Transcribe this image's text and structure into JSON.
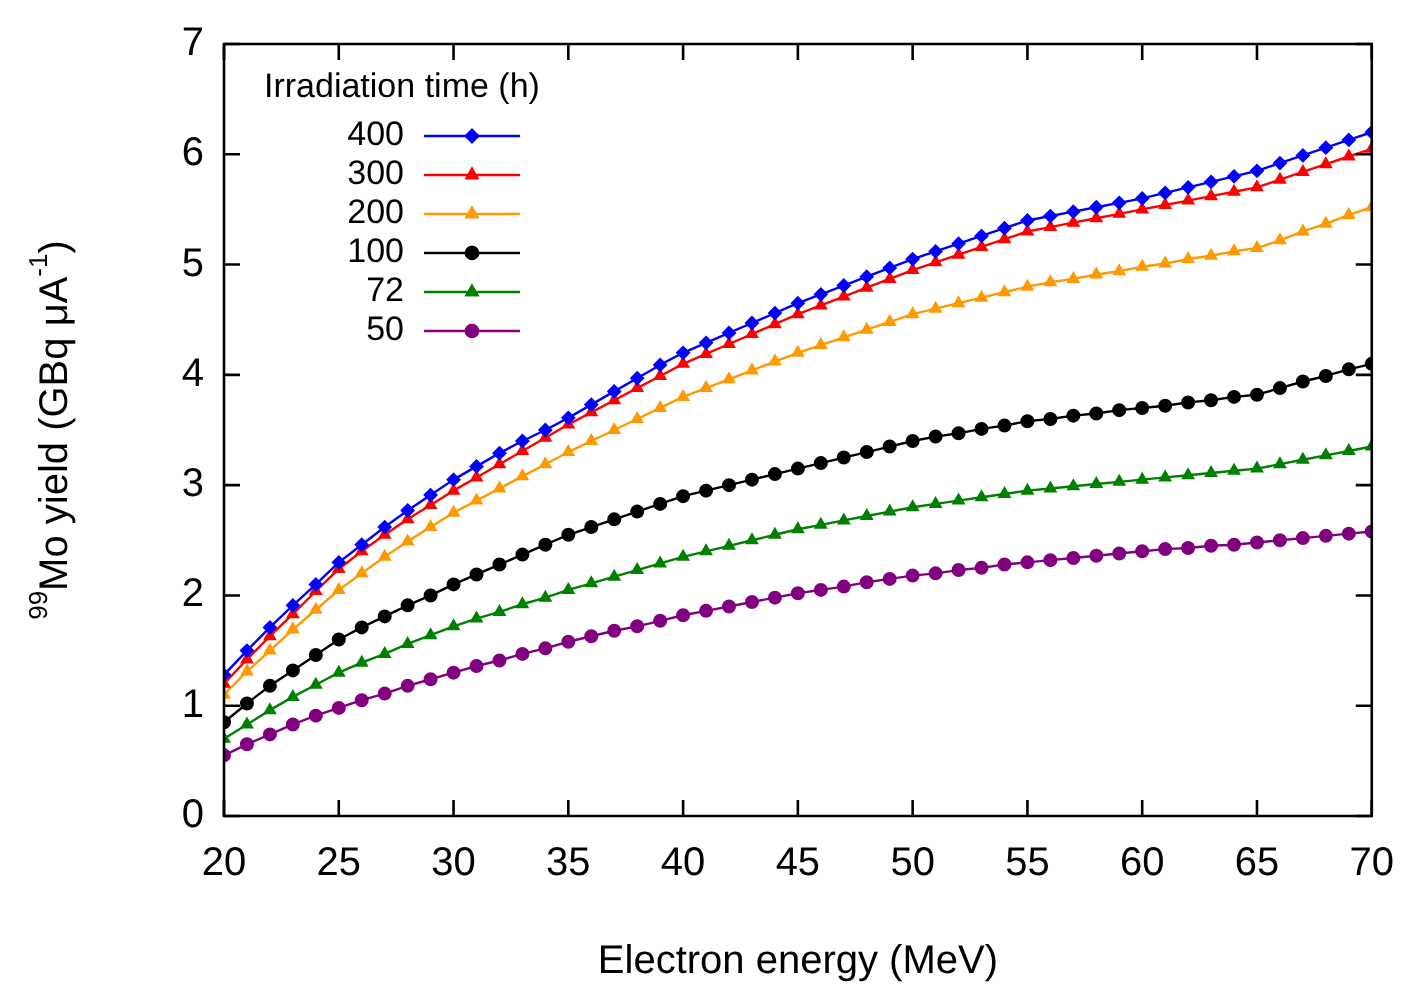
{
  "chart_data": {
    "type": "line",
    "xlabel": "Electron energy (MeV)",
    "ylabel": "$^{99}$Mo yield (GBq μA$^{-1}$)",
    "legend_title": "Irradiation time (h)",
    "legend": "top left",
    "grid": false,
    "x": [
      20,
      21,
      22,
      23,
      24,
      25,
      26,
      27,
      28,
      29,
      30,
      31,
      32,
      33,
      34,
      35,
      36,
      37,
      38,
      39,
      40,
      41,
      42,
      43,
      44,
      45,
      46,
      47,
      48,
      49,
      50,
      51,
      52,
      53,
      54,
      55,
      56,
      57,
      58,
      59,
      60,
      61,
      62,
      63,
      64,
      65,
      66,
      67,
      68,
      69,
      70
    ],
    "xlim": [
      20,
      70
    ],
    "xticks": [
      20,
      25,
      30,
      35,
      40,
      45,
      50,
      55,
      60,
      65,
      70
    ],
    "ylim": [
      0,
      7
    ],
    "yticks": [
      0,
      1,
      2,
      3,
      4,
      5,
      6,
      7
    ],
    "series": [
      {
        "name": "400",
        "color": "#0000ff",
        "marker": "diamond",
        "values": [
          1.28,
          1.5,
          1.71,
          1.91,
          2.1,
          2.3,
          2.46,
          2.62,
          2.77,
          2.91,
          3.05,
          3.17,
          3.29,
          3.4,
          3.5,
          3.61,
          3.73,
          3.85,
          3.97,
          4.09,
          4.2,
          4.29,
          4.38,
          4.47,
          4.56,
          4.65,
          4.73,
          4.81,
          4.89,
          4.97,
          5.05,
          5.12,
          5.19,
          5.26,
          5.33,
          5.4,
          5.44,
          5.48,
          5.52,
          5.56,
          5.6,
          5.65,
          5.7,
          5.75,
          5.8,
          5.85,
          5.92,
          5.99,
          6.06,
          6.13,
          6.2
        ]
      },
      {
        "name": "300",
        "color": "#ff0000",
        "marker": "triangle",
        "values": [
          1.2,
          1.42,
          1.63,
          1.83,
          2.04,
          2.24,
          2.4,
          2.55,
          2.69,
          2.82,
          2.95,
          3.07,
          3.19,
          3.31,
          3.43,
          3.55,
          3.66,
          3.77,
          3.88,
          3.99,
          4.1,
          4.19,
          4.28,
          4.37,
          4.46,
          4.55,
          4.63,
          4.71,
          4.79,
          4.87,
          4.95,
          5.02,
          5.09,
          5.16,
          5.23,
          5.3,
          5.34,
          5.38,
          5.42,
          5.46,
          5.5,
          5.54,
          5.58,
          5.62,
          5.66,
          5.7,
          5.77,
          5.84,
          5.91,
          5.98,
          6.05
        ]
      },
      {
        "name": "200",
        "color": "#ff9900",
        "marker": "triangle",
        "values": [
          1.1,
          1.31,
          1.5,
          1.69,
          1.87,
          2.05,
          2.2,
          2.35,
          2.49,
          2.62,
          2.75,
          2.86,
          2.97,
          3.08,
          3.19,
          3.3,
          3.4,
          3.5,
          3.6,
          3.7,
          3.8,
          3.88,
          3.96,
          4.04,
          4.12,
          4.2,
          4.27,
          4.34,
          4.41,
          4.48,
          4.55,
          4.6,
          4.65,
          4.7,
          4.75,
          4.8,
          4.84,
          4.87,
          4.91,
          4.94,
          4.98,
          5.01,
          5.05,
          5.08,
          5.12,
          5.15,
          5.22,
          5.3,
          5.37,
          5.45,
          5.52
        ]
      },
      {
        "name": "100",
        "color": "#000000",
        "marker": "circle",
        "values": [
          0.85,
          1.02,
          1.18,
          1.32,
          1.46,
          1.6,
          1.71,
          1.81,
          1.91,
          2.0,
          2.1,
          2.19,
          2.28,
          2.37,
          2.46,
          2.55,
          2.62,
          2.69,
          2.76,
          2.83,
          2.9,
          2.95,
          3.0,
          3.05,
          3.1,
          3.15,
          3.2,
          3.25,
          3.3,
          3.35,
          3.4,
          3.44,
          3.47,
          3.51,
          3.54,
          3.58,
          3.6,
          3.63,
          3.65,
          3.68,
          3.7,
          3.72,
          3.75,
          3.77,
          3.8,
          3.82,
          3.88,
          3.94,
          3.99,
          4.05,
          4.1
        ]
      },
      {
        "name": "72",
        "color": "#008000",
        "marker": "triangle",
        "values": [
          0.7,
          0.83,
          0.96,
          1.08,
          1.19,
          1.3,
          1.39,
          1.47,
          1.56,
          1.64,
          1.72,
          1.79,
          1.85,
          1.92,
          1.98,
          2.05,
          2.11,
          2.17,
          2.23,
          2.29,
          2.35,
          2.4,
          2.45,
          2.5,
          2.55,
          2.6,
          2.64,
          2.68,
          2.72,
          2.76,
          2.8,
          2.83,
          2.86,
          2.89,
          2.92,
          2.95,
          2.97,
          2.99,
          3.01,
          3.03,
          3.05,
          3.07,
          3.09,
          3.11,
          3.13,
          3.15,
          3.19,
          3.23,
          3.27,
          3.31,
          3.35
        ]
      },
      {
        "name": "50",
        "color": "#800080",
        "marker": "circle",
        "values": [
          0.55,
          0.65,
          0.74,
          0.83,
          0.91,
          0.98,
          1.05,
          1.11,
          1.18,
          1.24,
          1.3,
          1.36,
          1.41,
          1.47,
          1.52,
          1.58,
          1.63,
          1.68,
          1.72,
          1.77,
          1.82,
          1.86,
          1.9,
          1.94,
          1.98,
          2.02,
          2.05,
          2.08,
          2.12,
          2.15,
          2.18,
          2.2,
          2.23,
          2.25,
          2.28,
          2.3,
          2.32,
          2.34,
          2.36,
          2.38,
          2.4,
          2.42,
          2.43,
          2.45,
          2.46,
          2.48,
          2.5,
          2.52,
          2.54,
          2.56,
          2.58
        ]
      }
    ]
  }
}
